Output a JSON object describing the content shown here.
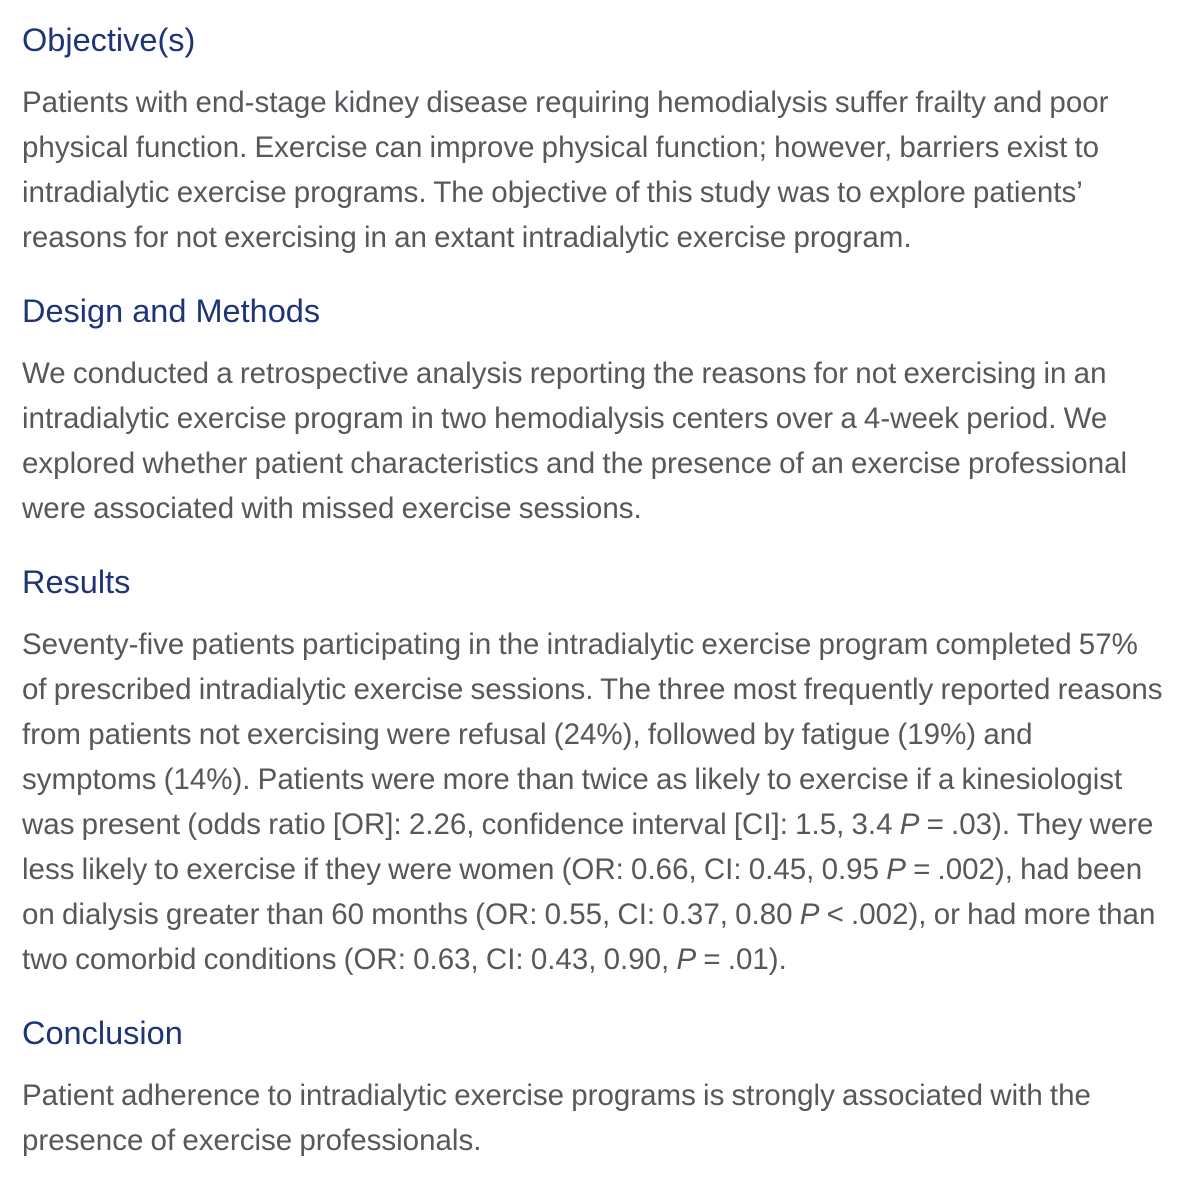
{
  "page": {
    "background": "#ffffff",
    "heading_color": "#1f3477",
    "body_color": "#57585c"
  },
  "sections": [
    {
      "id": "objectives",
      "heading": "Objective(s)",
      "paragraphs": [
        {
          "runs": [
            {
              "t": "Patients with end-stage kidney disease requiring hemodialysis suffer frailty and poor physical function. Exercise can improve physical function; however, barriers exist to intradialytic exercise programs. The objective of this study was to explore patients’ reasons for not exercising in an extant intradialytic exercise program."
            }
          ]
        }
      ]
    },
    {
      "id": "design-and-methods",
      "heading": "Design and Methods",
      "paragraphs": [
        {
          "runs": [
            {
              "t": "We conducted a retrospective analysis reporting the reasons for not exercising in an intradialytic exercise program in two hemodialysis centers over a 4-week period. We explored whether patient characteristics and the presence of an exercise professional were associated with missed exercise sessions."
            }
          ]
        }
      ]
    },
    {
      "id": "results",
      "heading": "Results",
      "paragraphs": [
        {
          "runs": [
            {
              "t": "Seventy-five patients participating in the intradialytic exercise program completed 57% of prescribed intradialytic exercise sessions. The three most frequently reported reasons from patients not exercising were refusal (24%), followed by fatigue (19%) and symptoms (14%). Patients were more than twice as likely to exercise if a kinesiologist was present (odds ratio [OR]: 2.26, confidence interval [CI]: 1.5, 3.4 "
            },
            {
              "t": "P",
              "i": true
            },
            {
              "t": " = .03). They were less likely to exercise if they were women (OR: 0.66, CI: 0.45, 0.95 "
            },
            {
              "t": "P",
              "i": true
            },
            {
              "t": " = .002), had been on dialysis greater than 60 months (OR: 0.55, CI: 0.37, 0.80 "
            },
            {
              "t": "P",
              "i": true
            },
            {
              "t": " < .002), or had more than two comorbid conditions (OR: 0.63, CI: 0.43, 0.90, "
            },
            {
              "t": "P",
              "i": true
            },
            {
              "t": " = .01)."
            }
          ]
        }
      ]
    },
    {
      "id": "conclusion",
      "heading": "Conclusion",
      "paragraphs": [
        {
          "runs": [
            {
              "t": "Patient adherence to intradialytic exercise programs is strongly associated with the presence of exercise professionals."
            }
          ]
        }
      ]
    }
  ]
}
